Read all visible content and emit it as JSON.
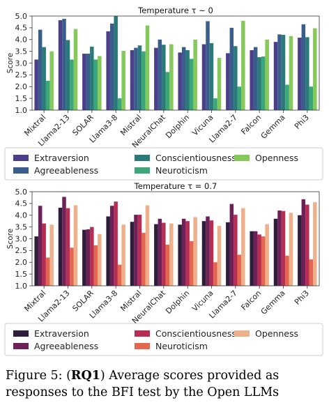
{
  "caption": {
    "prefix": "Figure 5: (",
    "bold": "RQ1",
    "suffix": ") Average scores provided as responses to the BFI test by the Open LLMs"
  },
  "chart_data": [
    {
      "type": "bar",
      "title": "Temperature τ ~ 0",
      "ylabel": "Score",
      "xlabel": "",
      "ylim": [
        1.0,
        5.0
      ],
      "yticks": [
        1.0,
        1.5,
        2.0,
        2.5,
        3.0,
        3.5,
        4.0,
        4.5,
        5.0
      ],
      "grid": false,
      "legend_position": "bottom",
      "categories": [
        "Mixtral",
        "Llama2-13",
        "SOLAR",
        "Llama3-8",
        "Mistral",
        "NeuralChat",
        "Dolphin",
        "Vicuna",
        "Llama2-7",
        "Falcon",
        "Gemma",
        "Phi3"
      ],
      "series": [
        {
          "name": "Extraversion",
          "color": "#4b3f8a",
          "values": [
            3.15,
            4.82,
            3.4,
            4.35,
            3.55,
            3.65,
            3.45,
            3.8,
            3.42,
            3.55,
            3.9,
            4.08
          ]
        },
        {
          "name": "Agreeableness",
          "color": "#3a5e8c",
          "values": [
            4.42,
            4.88,
            3.4,
            4.68,
            3.65,
            4.0,
            3.68,
            4.78,
            4.5,
            3.68,
            4.22,
            4.65
          ]
        },
        {
          "name": "Conscientiousness",
          "color": "#2a7a7a",
          "values": [
            3.68,
            3.98,
            3.7,
            5.0,
            3.75,
            3.78,
            3.55,
            3.85,
            3.72,
            3.25,
            4.2,
            4.1
          ]
        },
        {
          "name": "Neuroticism",
          "color": "#3ba678",
          "values": [
            2.25,
            3.15,
            3.15,
            1.5,
            3.5,
            2.62,
            3.18,
            1.5,
            2.0,
            3.28,
            2.08,
            2.0
          ]
        },
        {
          "name": "Openness",
          "color": "#84c95a",
          "values": [
            3.5,
            4.45,
            3.3,
            3.52,
            4.6,
            3.8,
            4.0,
            3.22,
            4.8,
            4.0,
            4.15,
            4.48
          ]
        }
      ]
    },
    {
      "type": "bar",
      "title": "Temperature τ = 0.7",
      "ylabel": "Score",
      "xlabel": "",
      "ylim": [
        1.0,
        5.0
      ],
      "yticks": [
        1.0,
        1.5,
        2.0,
        2.5,
        3.0,
        3.5,
        4.0,
        4.5,
        5.0
      ],
      "grid": false,
      "legend_position": "bottom",
      "categories": [
        "Mixtral",
        "Llama2-13",
        "SOLAR",
        "Llama3-8",
        "Mistral",
        "NeuralChat",
        "Dolphin",
        "Vicuna",
        "Llama2-7",
        "Falcon",
        "Gemma",
        "Phi3"
      ],
      "series": [
        {
          "name": "Extraversion",
          "color": "#2e1e3b",
          "values": [
            3.1,
            4.32,
            3.38,
            3.95,
            3.72,
            3.62,
            3.6,
            3.75,
            3.7,
            3.32,
            3.85,
            4.0
          ]
        },
        {
          "name": "Agreeableness",
          "color": "#6e2156",
          "values": [
            4.4,
            4.78,
            3.4,
            4.4,
            4.02,
            3.85,
            3.85,
            3.95,
            4.48,
            3.32,
            4.2,
            4.68
          ]
        },
        {
          "name": "Conscientiousness",
          "color": "#b72e55",
          "values": [
            3.65,
            4.3,
            3.5,
            4.58,
            4.02,
            3.68,
            3.75,
            3.78,
            4.02,
            3.18,
            4.18,
            4.45
          ]
        },
        {
          "name": "Neuroticism",
          "color": "#e3664e",
          "values": [
            2.2,
            2.62,
            2.72,
            1.9,
            3.25,
            2.75,
            2.9,
            2.0,
            2.32,
            3.1,
            2.28,
            2.12
          ]
        },
        {
          "name": "Openness",
          "color": "#eeb08b",
          "values": [
            3.6,
            4.42,
            3.2,
            3.6,
            4.42,
            3.65,
            3.92,
            3.55,
            4.3,
            3.62,
            4.1,
            4.55
          ]
        }
      ]
    }
  ]
}
